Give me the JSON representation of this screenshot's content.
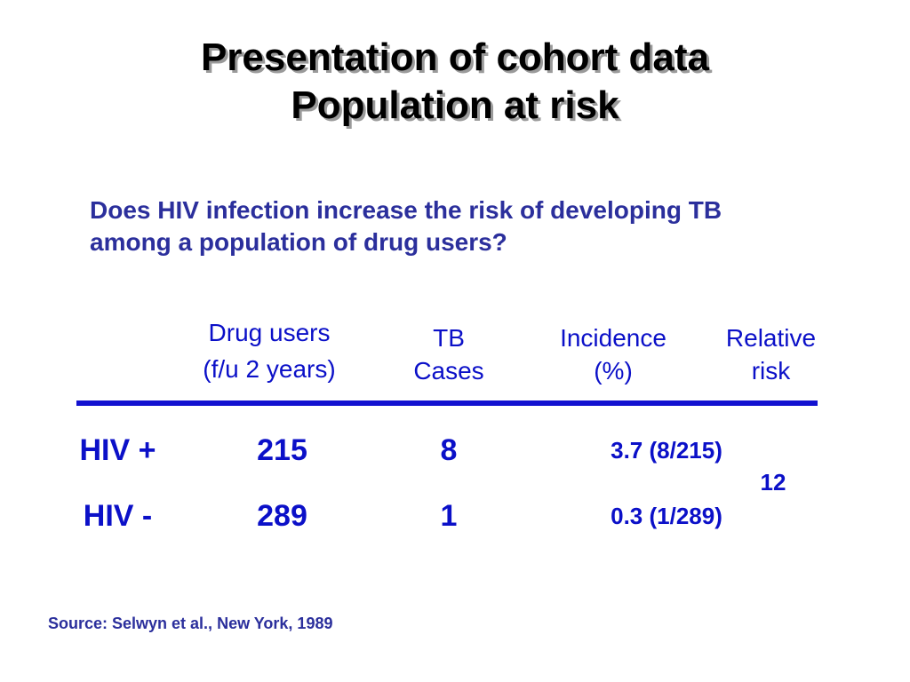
{
  "slide": {
    "title_line1": "Presentation of cohort data",
    "title_line2": "Population at risk",
    "question_line1": "Does HIV infection increase the risk of developing TB",
    "question_line2": "among a population of drug users?",
    "table": {
      "headers": {
        "drug_users_line1": "Drug users",
        "drug_users_line2": "(f/u 2 years)",
        "tb_line1": "TB",
        "tb_line2": "Cases",
        "incidence_line1": "Incidence",
        "incidence_line2": "(%)",
        "relative_line1": "Relative",
        "relative_line2": "risk"
      },
      "rows": [
        {
          "group": "HIV +",
          "drug_users": "215",
          "tb_cases": "8",
          "incidence": "3.7 (8/215)"
        },
        {
          "group": "HIV -",
          "drug_users": "289",
          "tb_cases": "1",
          "incidence": "0.3 (1/289)"
        }
      ],
      "relative_risk": "12"
    },
    "source": "Source: Selwyn et al., New York, 1989",
    "colors": {
      "title": "#000000",
      "question": "#2b2f9c",
      "table_text": "#0b10c8",
      "rule": "#1211d0"
    }
  }
}
